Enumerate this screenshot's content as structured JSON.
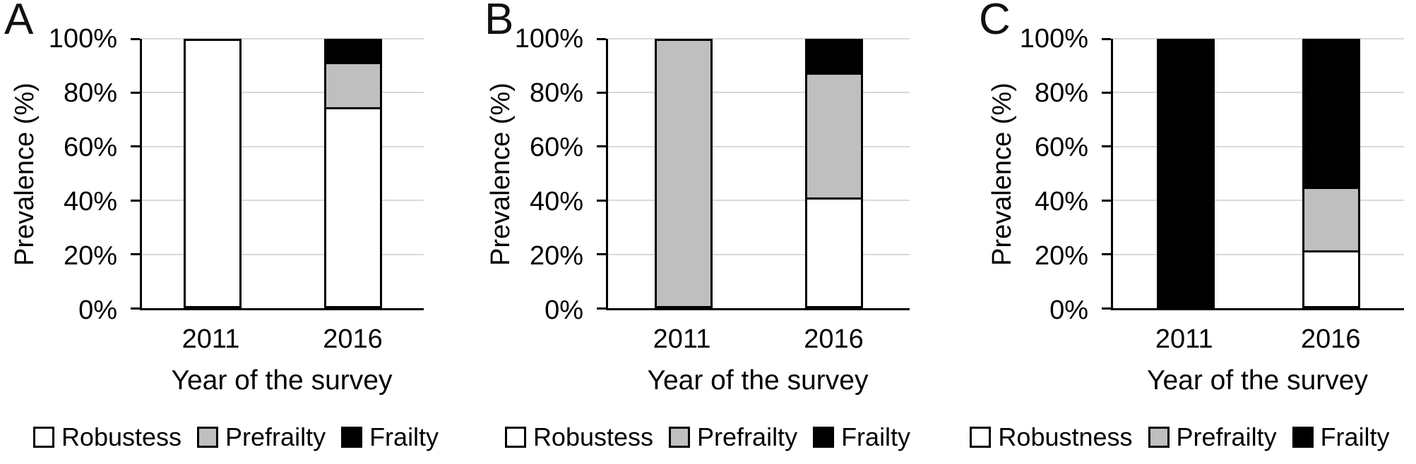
{
  "figure_title": "",
  "axis": {
    "ylabel": "Prevalence (%)",
    "xlabel": "Year of the survey"
  },
  "colors": {
    "robustness_fill": "#ffffff",
    "prefrailty_fill": "#bfbfbf",
    "frailty_fill": "#000000",
    "bar_border": "#000000",
    "gridline": "#d9d9d9",
    "axis_line": "#000000",
    "background": "#ffffff",
    "text": "#000000"
  },
  "chart_data": [
    {
      "type": "bar",
      "stacked": true,
      "panel_label": "A",
      "categories": [
        "2011",
        "2016"
      ],
      "series": [
        {
          "name": "Robustess",
          "color": "#ffffff",
          "values": [
            100,
            75
          ]
        },
        {
          "name": "Prefrailty",
          "color": "#bfbfbf",
          "values": [
            0,
            17
          ]
        },
        {
          "name": "Frailty",
          "color": "#000000",
          "values": [
            0,
            8
          ]
        }
      ],
      "title": "",
      "xlabel": "Year of the survey",
      "ylabel": "Prevalence (%)",
      "ylim": [
        0,
        100
      ],
      "ytick_labels": [
        "100%",
        "80%",
        "60%",
        "40%",
        "20%",
        "0%"
      ],
      "grid": true,
      "legend_position": "bottom"
    },
    {
      "type": "bar",
      "stacked": true,
      "panel_label": "B",
      "categories": [
        "2011",
        "2016"
      ],
      "series": [
        {
          "name": "Robustess",
          "color": "#ffffff",
          "values": [
            0,
            41
          ]
        },
        {
          "name": "Prefrailty",
          "color": "#bfbfbf",
          "values": [
            100,
            47
          ]
        },
        {
          "name": "Frailty",
          "color": "#000000",
          "values": [
            0,
            12
          ]
        }
      ],
      "title": "",
      "xlabel": "Year of the survey",
      "ylabel": "Prevalence (%)",
      "ylim": [
        0,
        100
      ],
      "ytick_labels": [
        "100%",
        "80%",
        "60%",
        "40%",
        "20%",
        "0%"
      ],
      "grid": true,
      "legend_position": "bottom"
    },
    {
      "type": "bar",
      "stacked": true,
      "panel_label": "C",
      "categories": [
        "2011",
        "2016"
      ],
      "series": [
        {
          "name": "Robustness",
          "color": "#ffffff",
          "values": [
            0,
            21
          ]
        },
        {
          "name": "Prefrailty",
          "color": "#bfbfbf",
          "values": [
            0,
            24
          ]
        },
        {
          "name": "Frailty",
          "color": "#000000",
          "values": [
            100,
            55
          ]
        }
      ],
      "title": "",
      "xlabel": "Year of the survey",
      "ylabel": "Prevalence (%)",
      "ylim": [
        0,
        100
      ],
      "ytick_labels": [
        "100%",
        "80%",
        "60%",
        "40%",
        "20%",
        "0%"
      ],
      "grid": true,
      "legend_position": "bottom"
    }
  ]
}
